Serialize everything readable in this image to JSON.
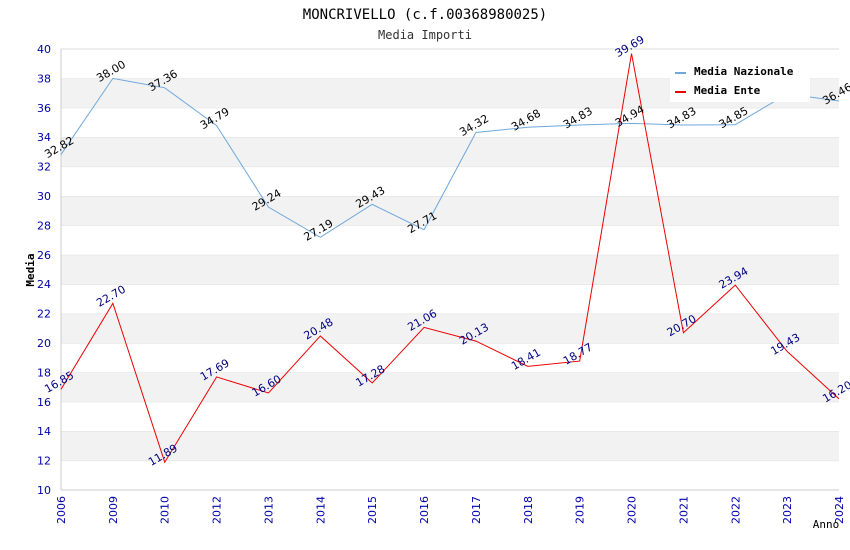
{
  "chart_data": {
    "type": "line",
    "title": "MONCRIVELLO (c.f.00368980025)",
    "subtitle": "Media Importi",
    "xlabel": "Anno",
    "ylabel": "Media",
    "ylim": [
      10,
      40
    ],
    "ytick_step": 2,
    "categories": [
      "2006",
      "2009",
      "2010",
      "2012",
      "2013",
      "2014",
      "2015",
      "2016",
      "2017",
      "2018",
      "2019",
      "2020",
      "2021",
      "2022",
      "2023",
      "2024"
    ],
    "series": [
      {
        "name": "Media Nazionale",
        "color": "#6fa8dc",
        "label_color": "#000000",
        "values": [
          32.82,
          38.0,
          37.36,
          34.79,
          29.24,
          27.19,
          29.43,
          27.71,
          34.32,
          34.68,
          34.83,
          34.94,
          34.83,
          34.85,
          36.95,
          36.46
        ],
        "labels": [
          "32.82",
          "38.00",
          "37.36",
          "34.79",
          "29.24",
          "27.19",
          "29.43",
          "27.71",
          "34.32",
          "34.68",
          "34.83",
          "34.94",
          "34.83",
          "34.85",
          "",
          "36.46"
        ]
      },
      {
        "name": "Media Ente",
        "color": "#ee0000",
        "label_color": "#000080",
        "values": [
          16.85,
          22.7,
          11.89,
          17.69,
          16.6,
          20.48,
          17.28,
          21.06,
          20.13,
          18.41,
          18.77,
          39.69,
          20.7,
          23.94,
          19.43,
          16.2
        ],
        "labels": [
          "16.85",
          "22.70",
          "11.89",
          "17.69",
          "16.60",
          "20.48",
          "17.28",
          "21.06",
          "20.13",
          "18.41",
          "18.77",
          "39.69",
          "20.70",
          "23.94",
          "19.43",
          "16.20"
        ]
      }
    ],
    "grid": true,
    "legend_position": "top-right"
  }
}
